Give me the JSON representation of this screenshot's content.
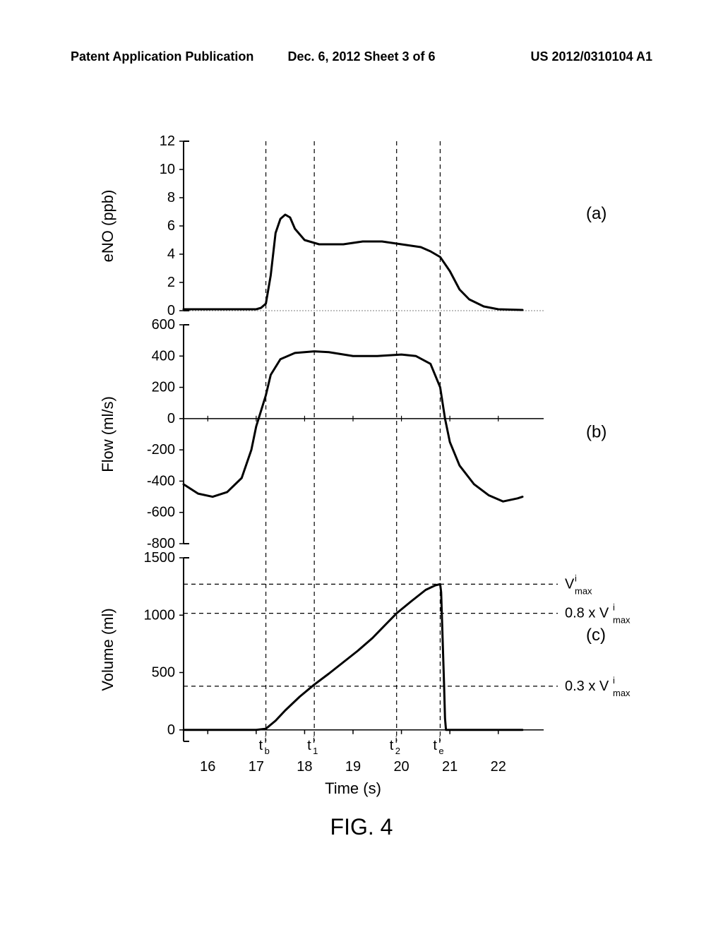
{
  "header": {
    "left": "Patent Application Publication",
    "center": "Dec. 6, 2012  Sheet 3 of 6",
    "right": "US 2012/0310104 A1"
  },
  "figure_label": "FIG. 4",
  "colors": {
    "bg": "#ffffff",
    "line": "#000000",
    "axis": "#000000"
  },
  "time_axis": {
    "label": "Time (s)",
    "ticks": [
      16,
      17,
      18,
      19,
      20,
      21,
      22
    ],
    "xlim": [
      15.5,
      22.5
    ],
    "time_markers": {
      "tb": 17.2,
      "t1": 18.2,
      "t2": 19.9,
      "te": 20.8
    },
    "marker_labels": [
      "t^i_b",
      "t^i_1",
      "t^i_2",
      "t^i_e"
    ]
  },
  "panels": {
    "a": {
      "ylabel": "eNO (ppb)",
      "panel_label": "(a)",
      "ylim": [
        0,
        12
      ],
      "yticks": [
        0,
        2,
        4,
        6,
        8,
        10,
        12
      ],
      "line_width": 3,
      "data": [
        [
          15.5,
          0.1
        ],
        [
          16.5,
          0.1
        ],
        [
          17.0,
          0.1
        ],
        [
          17.1,
          0.2
        ],
        [
          17.2,
          0.5
        ],
        [
          17.3,
          2.5
        ],
        [
          17.4,
          5.5
        ],
        [
          17.5,
          6.5
        ],
        [
          17.6,
          6.8
        ],
        [
          17.7,
          6.6
        ],
        [
          17.8,
          5.8
        ],
        [
          18.0,
          5.0
        ],
        [
          18.3,
          4.7
        ],
        [
          18.8,
          4.7
        ],
        [
          19.2,
          4.9
        ],
        [
          19.6,
          4.9
        ],
        [
          20.0,
          4.7
        ],
        [
          20.4,
          4.5
        ],
        [
          20.6,
          4.2
        ],
        [
          20.8,
          3.8
        ],
        [
          21.0,
          2.8
        ],
        [
          21.2,
          1.5
        ],
        [
          21.4,
          0.8
        ],
        [
          21.7,
          0.3
        ],
        [
          22.0,
          0.1
        ],
        [
          22.5,
          0.05
        ]
      ]
    },
    "b": {
      "ylabel": "Flow (ml/s)",
      "panel_label": "(b)",
      "ylim": [
        -800,
        600
      ],
      "yticks": [
        -800,
        -600,
        -400,
        -200,
        0,
        200,
        400,
        600
      ],
      "line_width": 3,
      "data": [
        [
          15.5,
          -420
        ],
        [
          15.8,
          -480
        ],
        [
          16.1,
          -500
        ],
        [
          16.4,
          -470
        ],
        [
          16.7,
          -380
        ],
        [
          16.9,
          -200
        ],
        [
          17.0,
          -50
        ],
        [
          17.1,
          50
        ],
        [
          17.2,
          150
        ],
        [
          17.3,
          280
        ],
        [
          17.5,
          380
        ],
        [
          17.8,
          420
        ],
        [
          18.2,
          430
        ],
        [
          18.5,
          425
        ],
        [
          19.0,
          400
        ],
        [
          19.5,
          400
        ],
        [
          20.0,
          410
        ],
        [
          20.3,
          400
        ],
        [
          20.6,
          350
        ],
        [
          20.8,
          200
        ],
        [
          20.9,
          0
        ],
        [
          21.0,
          -150
        ],
        [
          21.2,
          -300
        ],
        [
          21.5,
          -420
        ],
        [
          21.8,
          -490
        ],
        [
          22.1,
          -530
        ],
        [
          22.4,
          -510
        ],
        [
          22.5,
          -500
        ]
      ]
    },
    "c": {
      "ylabel": "Volume (ml)",
      "panel_label": "(c)",
      "ylim": [
        -100,
        1500
      ],
      "yticks": [
        0,
        500,
        1000,
        1500
      ],
      "line_width": 3,
      "vmax": 1270,
      "v_lines": {
        "vmax": {
          "value": 1270,
          "label": "V^i_max"
        },
        "v08": {
          "value": 1016,
          "label": "0.8 × V^i_max"
        },
        "v03": {
          "value": 381,
          "label": "0.3 × V^i_max"
        }
      },
      "data": [
        [
          15.5,
          0
        ],
        [
          17.0,
          0
        ],
        [
          17.2,
          10
        ],
        [
          17.4,
          80
        ],
        [
          17.6,
          170
        ],
        [
          17.9,
          290
        ],
        [
          18.2,
          395
        ],
        [
          18.5,
          490
        ],
        [
          18.8,
          590
        ],
        [
          19.1,
          690
        ],
        [
          19.4,
          800
        ],
        [
          19.7,
          930
        ],
        [
          19.9,
          1016
        ],
        [
          20.2,
          1120
        ],
        [
          20.5,
          1220
        ],
        [
          20.7,
          1260
        ],
        [
          20.8,
          1270
        ],
        [
          20.82,
          1200
        ],
        [
          20.85,
          800
        ],
        [
          20.88,
          400
        ],
        [
          20.9,
          100
        ],
        [
          20.92,
          0
        ],
        [
          22.5,
          0
        ]
      ]
    }
  },
  "layout": {
    "panel_gap": 20,
    "font_size_axis": 20,
    "font_size_label": 22
  }
}
